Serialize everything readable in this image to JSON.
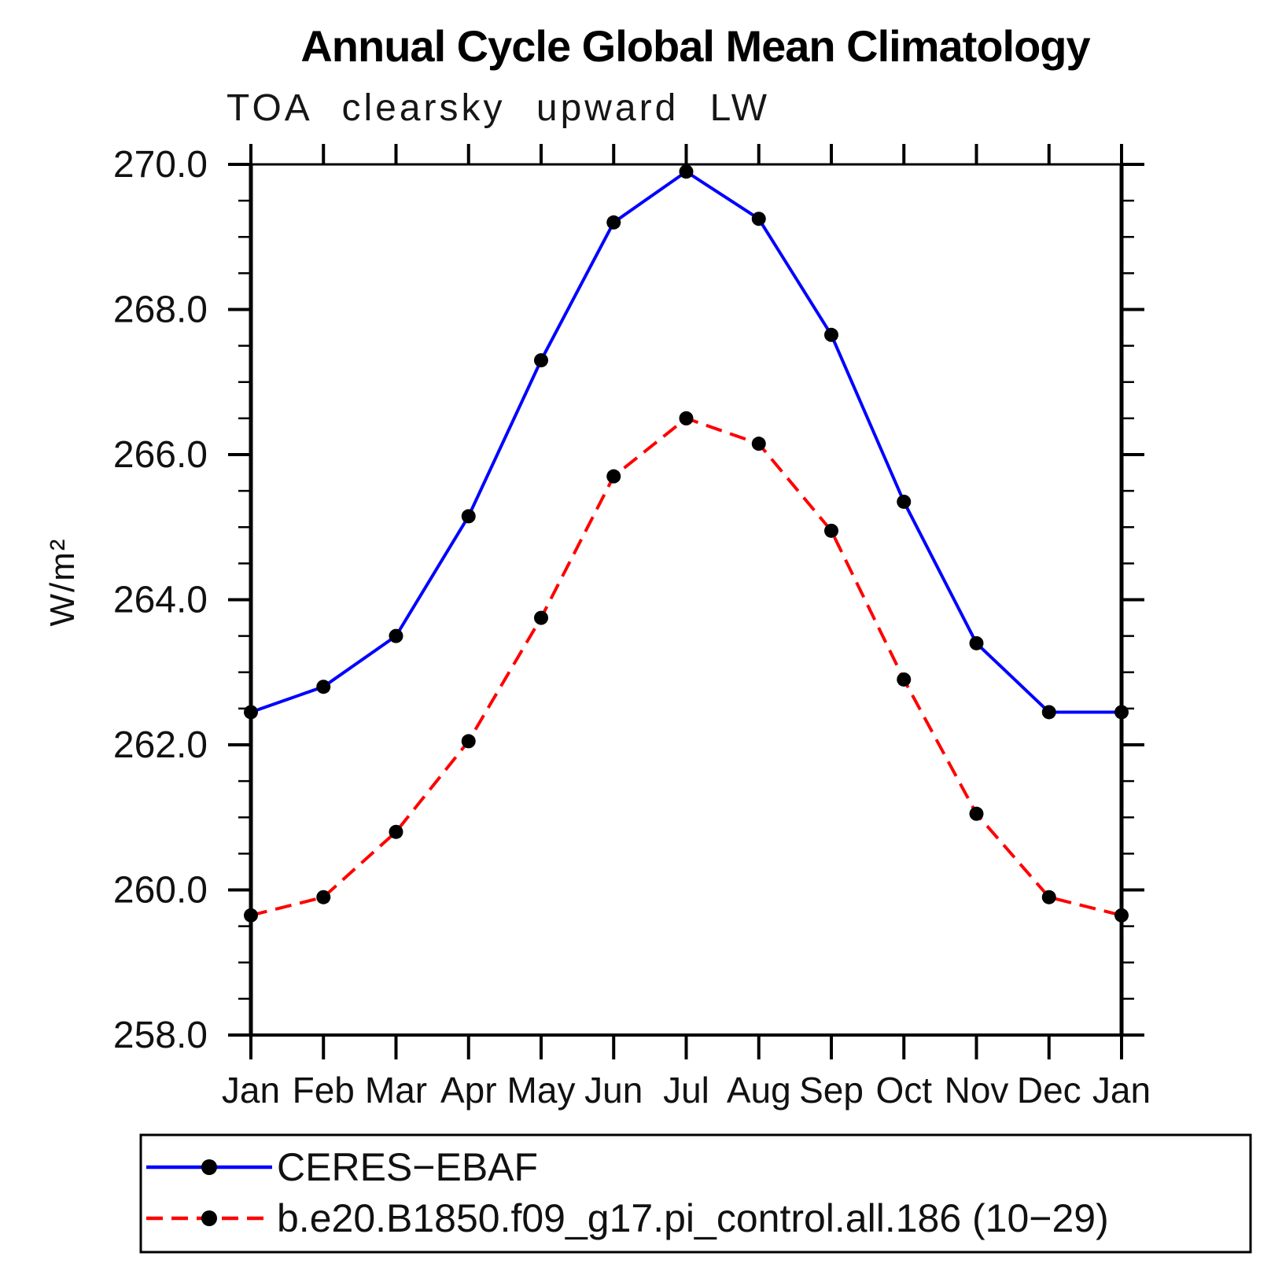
{
  "header": {
    "title": "Annual Cycle Global Mean Climatology",
    "subtitle": "TOA clearsky upward LW"
  },
  "colors": {
    "axis": "#000000",
    "marker": "#000000",
    "series_obs": "#0000ff",
    "series_model": "#ff0000",
    "background": "#ffffff"
  },
  "chart_data": {
    "type": "line",
    "title": "Annual Cycle Global Mean Climatology",
    "subtitle": "TOA clearsky upward LW",
    "xlabel": "",
    "ylabel": "W/m²",
    "categories": [
      "Jan",
      "Feb",
      "Mar",
      "Apr",
      "May",
      "Jun",
      "Jul",
      "Aug",
      "Sep",
      "Oct",
      "Nov",
      "Dec",
      "Jan"
    ],
    "y_ticks": [
      258.0,
      260.0,
      262.0,
      264.0,
      266.0,
      268.0,
      270.0
    ],
    "y_tick_labels": [
      "258.0",
      "260.0",
      "262.0",
      "264.0",
      "266.0",
      "268.0",
      "270.0"
    ],
    "ylim": [
      258.0,
      270.0
    ],
    "y_major_step": 2.0,
    "y_minor_step": 0.5,
    "grid": false,
    "legend_position": "bottom-left",
    "marker": {
      "shape": "circle",
      "color": "#000000"
    },
    "series": [
      {
        "name": "CERES−EBAF",
        "color": "#0000ff",
        "line_style": "solid",
        "values": [
          262.45,
          262.8,
          263.5,
          265.15,
          267.3,
          269.2,
          269.9,
          269.25,
          267.65,
          265.35,
          263.4,
          262.45,
          262.45
        ]
      },
      {
        "name": "b.e20.B1850.f09_g17.pi_control.all.186 (10−29)",
        "color": "#ff0000",
        "line_style": "dashed",
        "values": [
          259.65,
          259.9,
          260.8,
          262.05,
          263.75,
          265.7,
          266.5,
          266.15,
          264.95,
          262.9,
          261.05,
          259.9,
          259.65
        ]
      }
    ]
  }
}
